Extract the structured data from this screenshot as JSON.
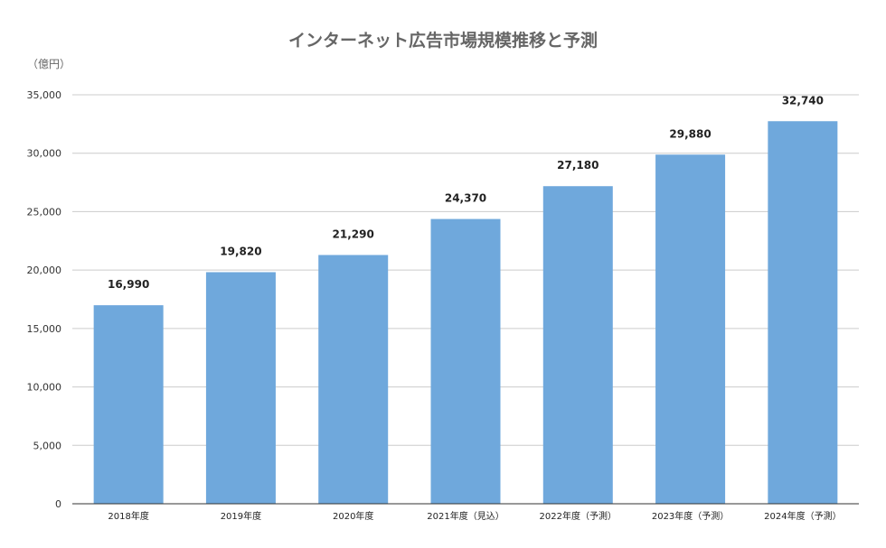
{
  "chart_data": {
    "type": "bar",
    "title": "インターネット広告市場規模推移と予測",
    "unit_label": "（億円）",
    "categories": [
      "2018年度",
      "2019年度",
      "2020年度",
      "2021年度（見込）",
      "2022年度（予測）",
      "2023年度（予測）",
      "2024年度（予測）"
    ],
    "values": [
      16990,
      19820,
      21290,
      24370,
      27180,
      29880,
      32740
    ],
    "value_labels": [
      "16,990",
      "19,820",
      "21,290",
      "24,370",
      "27,180",
      "29,880",
      "32,740"
    ],
    "y_ticks": [
      0,
      5000,
      10000,
      15000,
      20000,
      25000,
      30000,
      35000
    ],
    "y_tick_labels": [
      "0",
      "5,000",
      "10,000",
      "15,000",
      "20,000",
      "25,000",
      "30,000",
      "35,000"
    ],
    "ylim": [
      0,
      35000
    ],
    "grid": true,
    "bar_color": "#6fa8dc",
    "grid_color": "#cccccc",
    "axis_color": "#333333"
  }
}
